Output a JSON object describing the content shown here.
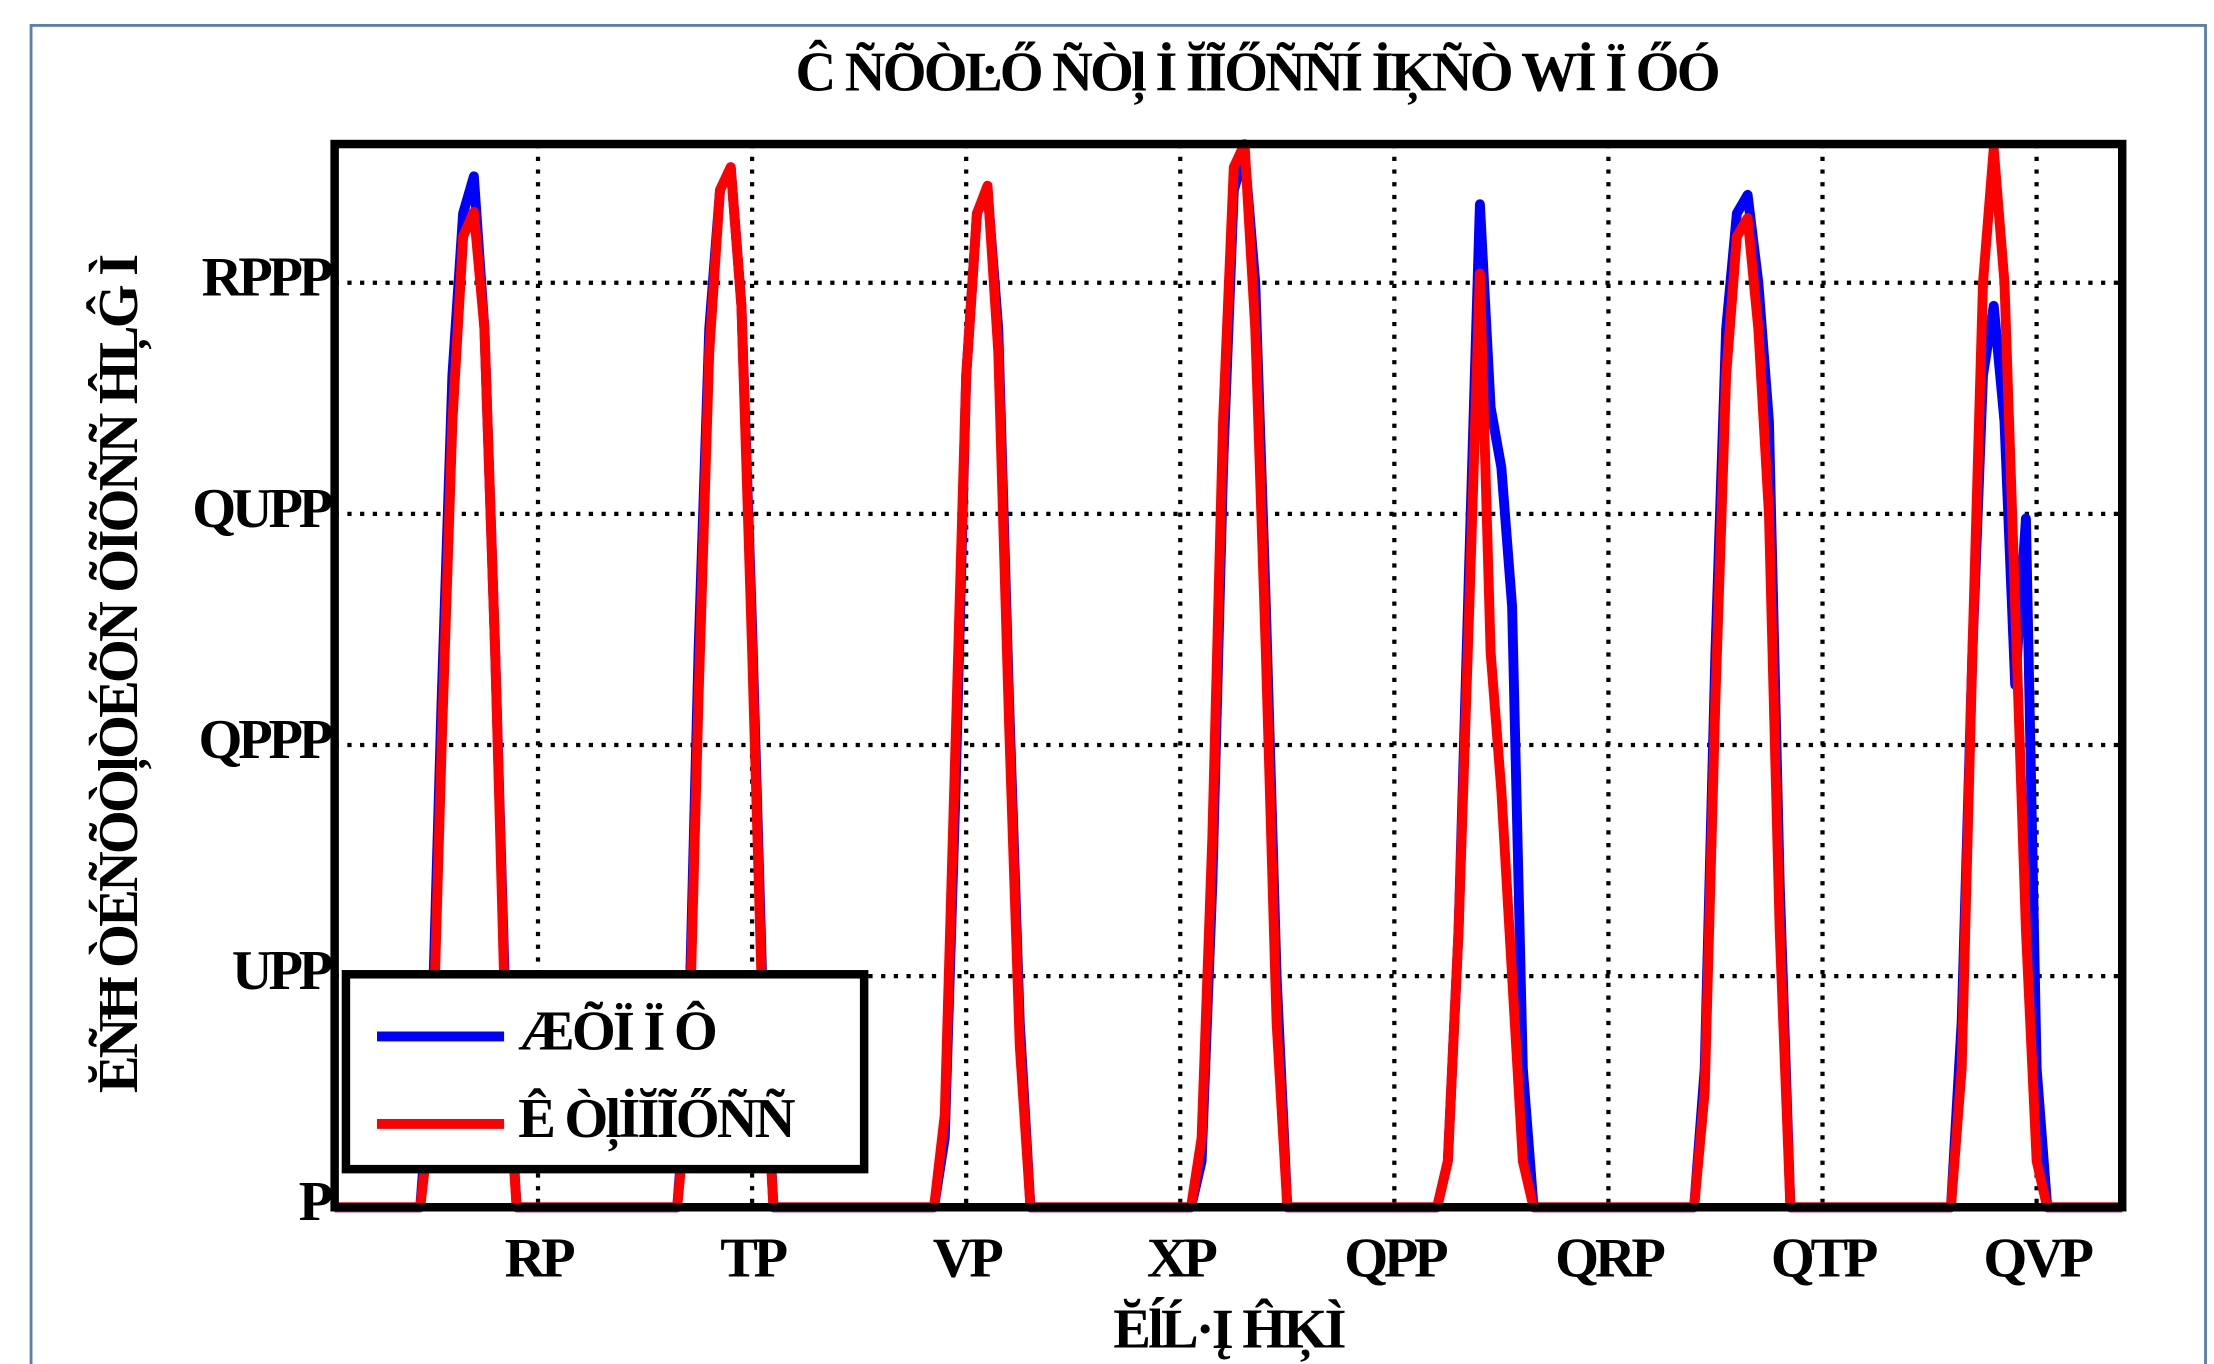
{
  "chart_data": {
    "type": "line",
    "title": "Ĉ ÑÕÒĿŐ ÑÒļ İ ĬĨŐÑÑÍ İĶÑÒ Wİ Ï ŐÓ",
    "xlabel": "ĔĺĹ·Į ĤĶÌ",
    "ylabel": "ĔÑĦ ÒÉÑÕÒļÒÉÕÑ ÕĨÕÑÑ ĤĻĜ Ì",
    "x": [
      1,
      9,
      10,
      11,
      12,
      13,
      14,
      15,
      16,
      17,
      18,
      33,
      34,
      35,
      36,
      37,
      38,
      39,
      40,
      41,
      42,
      57,
      58,
      59,
      60,
      61,
      62,
      63,
      64,
      65,
      66,
      81,
      82,
      83,
      84,
      85,
      86,
      87,
      88,
      89,
      90,
      104,
      105,
      106,
      107,
      108,
      109,
      110,
      111,
      112,
      113,
      128,
      129,
      130,
      131,
      132,
      133,
      134,
      135,
      136,
      137,
      152,
      153,
      154,
      155,
      156,
      157,
      158,
      159,
      160,
      161,
      168
    ],
    "series": [
      {
        "name": "ÆÕÏ Ï Ô",
        "color": "#0000ff",
        "values": [
          0,
          0,
          300,
          1100,
          1800,
          2150,
          2230,
          1900,
          1200,
          400,
          0,
          0,
          300,
          1200,
          1900,
          2200,
          2250,
          1950,
          1250,
          450,
          0,
          0,
          150,
          900,
          1800,
          2150,
          2200,
          1900,
          1100,
          400,
          0,
          0,
          100,
          700,
          1600,
          2200,
          2280,
          2000,
          1300,
          500,
          0,
          0,
          100,
          600,
          1400,
          2170,
          1730,
          1600,
          1300,
          300,
          0,
          0,
          300,
          1200,
          1900,
          2150,
          2190,
          2000,
          1700,
          700,
          0,
          0,
          400,
          1200,
          1800,
          1950,
          1700,
          1130,
          1490,
          300,
          0,
          0
        ]
      },
      {
        "name": "Ê ÒļİĬĨŐÑÑ",
        "color": "#ff0000",
        "values": [
          0,
          0,
          200,
          1000,
          1700,
          2100,
          2153,
          1900,
          1200,
          350,
          0,
          0,
          250,
          1100,
          1850,
          2200,
          2250,
          1950,
          1200,
          400,
          0,
          0,
          200,
          1000,
          1800,
          2150,
          2210,
          1850,
          1050,
          350,
          0,
          0,
          150,
          800,
          1700,
          2250,
          2300,
          1900,
          1200,
          400,
          0,
          0,
          100,
          600,
          1300,
          2020,
          1200,
          900,
          500,
          100,
          0,
          0,
          250,
          1100,
          1800,
          2100,
          2140,
          1900,
          1500,
          600,
          0,
          0,
          300,
          1200,
          2000,
          2290,
          2000,
          1300,
          600,
          100,
          0,
          0
        ]
      }
    ],
    "xlim": [
      1,
      168
    ],
    "ylim": [
      0,
      2300
    ],
    "xticks": [
      {
        "value": 20,
        "label": "RP"
      },
      {
        "value": 40,
        "label": "TP"
      },
      {
        "value": 60,
        "label": "VP"
      },
      {
        "value": 80,
        "label": "XP"
      },
      {
        "value": 100,
        "label": "QPP"
      },
      {
        "value": 120,
        "label": "QRP"
      },
      {
        "value": 140,
        "label": "QTP"
      },
      {
        "value": 160,
        "label": "QVP"
      }
    ],
    "yticks": [
      {
        "value": 0,
        "label": "P"
      },
      {
        "value": 500,
        "label": "UPP"
      },
      {
        "value": 1000,
        "label": "QPPP"
      },
      {
        "value": 1500,
        "label": "QUPP"
      },
      {
        "value": 2000,
        "label": "RPPP"
      }
    ],
    "grid": true,
    "legend": "lower left"
  }
}
